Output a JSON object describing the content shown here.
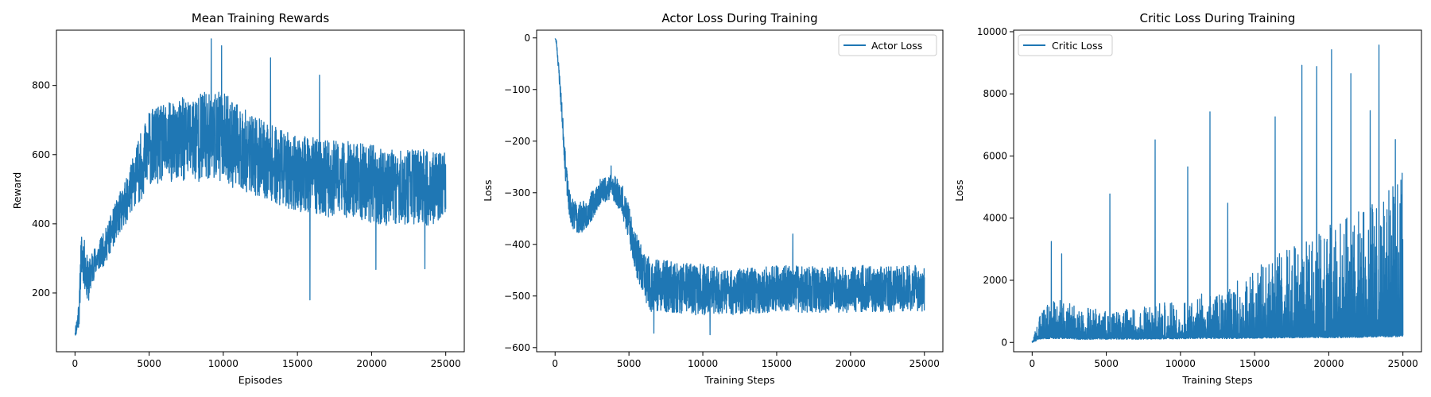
{
  "chart_data": [
    {
      "type": "line",
      "title": "Mean Training Rewards",
      "xlabel": "Episodes",
      "ylabel": "Reward",
      "xlim": [
        -1250,
        26250
      ],
      "ylim": [
        30,
        960
      ],
      "xticks": [
        0,
        5000,
        10000,
        15000,
        20000,
        25000
      ],
      "yticks": [
        200,
        400,
        600,
        800
      ],
      "grid": false,
      "legend": null,
      "color": "#1f77b4",
      "noise_seed": 11,
      "series": [
        {
          "x": [
            0,
            150,
            300,
            400,
            500,
            700,
            900,
            1200,
            1500,
            2000,
            2500,
            3000,
            3500,
            4000,
            4500,
            5000,
            6000,
            7000,
            8000,
            9000,
            10000,
            11000,
            12000,
            13000,
            14000,
            15000,
            16000,
            17000,
            18000,
            19000,
            20000,
            21000,
            22000,
            23000,
            24000,
            25000
          ],
          "center": [
            85,
            110,
            160,
            300,
            310,
            270,
            230,
            280,
            300,
            330,
            380,
            430,
            470,
            530,
            570,
            620,
            630,
            640,
            650,
            655,
            650,
            620,
            600,
            580,
            560,
            545,
            540,
            530,
            530,
            525,
            515,
            505,
            505,
            505,
            505,
            505
          ],
          "spread": [
            10,
            30,
            50,
            60,
            70,
            70,
            60,
            50,
            40,
            50,
            55,
            60,
            65,
            80,
            100,
            110,
            115,
            120,
            130,
            130,
            130,
            125,
            115,
            110,
            110,
            110,
            110,
            110,
            110,
            110,
            115,
            110,
            105,
            110,
            110,
            100
          ],
          "spikes": [
            {
              "x": 9200,
              "y": 935
            },
            {
              "x": 9900,
              "y": 915
            },
            {
              "x": 15850,
              "y": 180
            },
            {
              "x": 16500,
              "y": 830
            },
            {
              "x": 20300,
              "y": 268
            },
            {
              "x": 23600,
              "y": 270
            },
            {
              "x": 13200,
              "y": 880
            }
          ]
        }
      ]
    },
    {
      "type": "line",
      "title": "Actor Loss During Training",
      "xlabel": "Training Steps",
      "ylabel": "Loss",
      "xlim": [
        -1250,
        26250
      ],
      "ylim": [
        -608,
        15
      ],
      "xticks": [
        0,
        5000,
        10000,
        15000,
        20000,
        25000
      ],
      "yticks": [
        0,
        -100,
        -200,
        -300,
        -400,
        -500,
        -600
      ],
      "grid": false,
      "legend": {
        "location": "top-right",
        "entries": [
          "Actor Loss"
        ]
      },
      "color": "#1f77b4",
      "noise_seed": 23,
      "series": [
        {
          "name": "Actor Loss",
          "x": [
            0,
            100,
            300,
            500,
            700,
            900,
            1100,
            1500,
            2000,
            2500,
            3000,
            3500,
            4000,
            4500,
            5000,
            5500,
            6000,
            6500,
            7000,
            8000,
            9000,
            10000,
            11000,
            12000,
            13000,
            14000,
            15000,
            16000,
            17000,
            18000,
            19000,
            20000,
            21000,
            22000,
            23000,
            24000,
            25000
          ],
          "center": [
            0,
            -10,
            -80,
            -160,
            -250,
            -310,
            -335,
            -350,
            -345,
            -325,
            -300,
            -290,
            -290,
            -310,
            -360,
            -420,
            -460,
            -480,
            -480,
            -482,
            -485,
            -488,
            -490,
            -492,
            -490,
            -488,
            -486,
            -485,
            -488,
            -488,
            -488,
            -488,
            -485,
            -488,
            -487,
            -486,
            -485
          ],
          "spread": [
            2,
            5,
            15,
            20,
            25,
            25,
            30,
            30,
            30,
            28,
            25,
            25,
            28,
            30,
            35,
            40,
            50,
            50,
            50,
            50,
            50,
            50,
            48,
            45,
            45,
            45,
            45,
            45,
            45,
            45,
            45,
            45,
            45,
            45,
            45,
            45,
            45
          ],
          "spikes": [
            {
              "x": 16100,
              "y": -380
            },
            {
              "x": 10500,
              "y": -575
            },
            {
              "x": 6700,
              "y": -572
            },
            {
              "x": 3800,
              "y": -248
            }
          ]
        }
      ]
    },
    {
      "type": "line",
      "title": "Critic Loss During Training",
      "xlabel": "Training Steps",
      "ylabel": "Loss",
      "xlim": [
        -1250,
        26250
      ],
      "ylim": [
        -300,
        10050
      ],
      "xticks": [
        0,
        5000,
        10000,
        15000,
        20000,
        25000
      ],
      "yticks": [
        0,
        2000,
        4000,
        6000,
        8000,
        10000
      ],
      "grid": false,
      "legend": {
        "location": "top-left",
        "entries": [
          "Critic Loss"
        ]
      },
      "color": "#1f77b4",
      "noise_seed": 37,
      "series": [
        {
          "name": "Critic Loss",
          "x": [
            0,
            500,
            1000,
            2000,
            3000,
            5000,
            7000,
            9000,
            11000,
            13000,
            15000,
            17000,
            19000,
            21000,
            23000,
            24500,
            25000
          ],
          "floor": [
            0,
            100,
            120,
            120,
            100,
            100,
            100,
            110,
            120,
            120,
            130,
            140,
            150,
            150,
            170,
            180,
            180
          ],
          "dense_top": [
            0,
            900,
            1300,
            1400,
            1200,
            1000,
            1100,
            1300,
            1500,
            1800,
            2400,
            3000,
            3500,
            4000,
            4500,
            5200,
            5600
          ],
          "spikes": [
            {
              "x": 1300,
              "y": 3250
            },
            {
              "x": 2000,
              "y": 2850
            },
            {
              "x": 5250,
              "y": 4780
            },
            {
              "x": 8300,
              "y": 6520
            },
            {
              "x": 10500,
              "y": 5650
            },
            {
              "x": 12000,
              "y": 7420
            },
            {
              "x": 13200,
              "y": 4480
            },
            {
              "x": 16400,
              "y": 7260
            },
            {
              "x": 18200,
              "y": 8920
            },
            {
              "x": 19200,
              "y": 8880
            },
            {
              "x": 20200,
              "y": 9420
            },
            {
              "x": 21500,
              "y": 8650
            },
            {
              "x": 22800,
              "y": 7460
            },
            {
              "x": 23400,
              "y": 9570
            },
            {
              "x": 24500,
              "y": 6530
            }
          ]
        }
      ]
    }
  ]
}
